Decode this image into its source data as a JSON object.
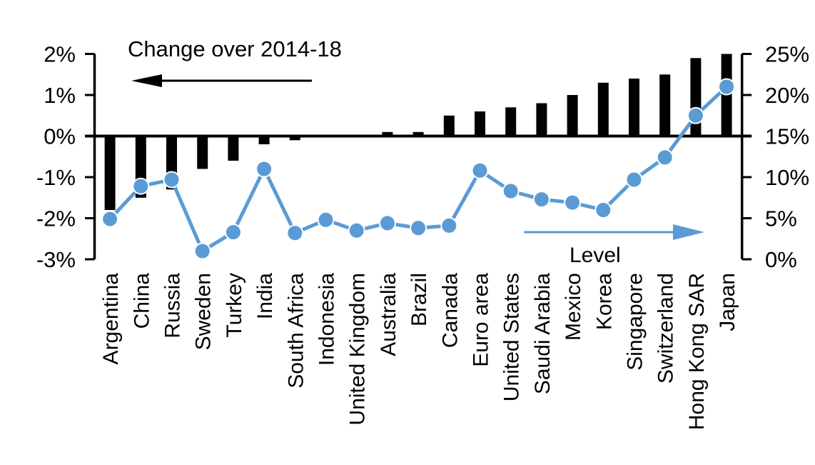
{
  "chart_data": {
    "type": "combo",
    "title": "Change over 2014-18",
    "right_series_label": "Level",
    "categories": [
      "Argentina",
      "China",
      "Russia",
      "Sweden",
      "Turkey",
      "India",
      "South Africa",
      "Indonesia",
      "United Kingdom",
      "Australia",
      "Brazil",
      "Canada",
      "Euro area",
      "United States",
      "Saudi Arabia",
      "Mexico",
      "Korea",
      "Singapore",
      "Switzerland",
      "Hong Kong SAR",
      "Japan"
    ],
    "series": [
      {
        "name": "Change over 2014-18",
        "type": "bar",
        "axis": "left",
        "color": "#000000",
        "unit": "%",
        "values": [
          -1.8,
          -1.5,
          -1.3,
          -0.8,
          -0.6,
          -0.2,
          -0.1,
          0.0,
          0.0,
          0.1,
          0.1,
          0.5,
          0.6,
          0.7,
          0.8,
          1.0,
          1.3,
          1.4,
          1.5,
          1.9,
          2.0
        ]
      },
      {
        "name": "Level",
        "type": "line",
        "axis": "right",
        "color": "#5B9BD5",
        "unit": "%",
        "values": [
          4.9,
          8.9,
          9.7,
          1.0,
          3.3,
          11.0,
          3.2,
          4.8,
          3.5,
          4.4,
          3.8,
          4.1,
          10.8,
          8.3,
          7.3,
          6.9,
          6.0,
          9.7,
          12.4,
          17.5,
          21.0
        ]
      }
    ],
    "left_axis": {
      "tick_labels": [
        "2%",
        "1%",
        "0%",
        "-1%",
        "-2%",
        "-3%"
      ],
      "tick_values": [
        2,
        1,
        0,
        -1,
        -2,
        -3
      ],
      "range": [
        -3,
        2
      ]
    },
    "right_axis": {
      "tick_labels": [
        "25%",
        "20%",
        "15%",
        "10%",
        "5%",
        "0%"
      ],
      "tick_values": [
        25,
        20,
        15,
        10,
        5,
        0
      ],
      "range": [
        0,
        25
      ]
    },
    "annotations": {
      "left_arrow": {
        "points_to": "left-axis",
        "color": "#000000"
      },
      "right_arrow": {
        "points_to": "right-axis",
        "color": "#5B9BD5"
      }
    },
    "legend_position": "none",
    "grid": false
  },
  "colors": {
    "bar": "#000000",
    "line": "#5B9BD5",
    "text": "#000000",
    "background": "#FFFFFF"
  }
}
